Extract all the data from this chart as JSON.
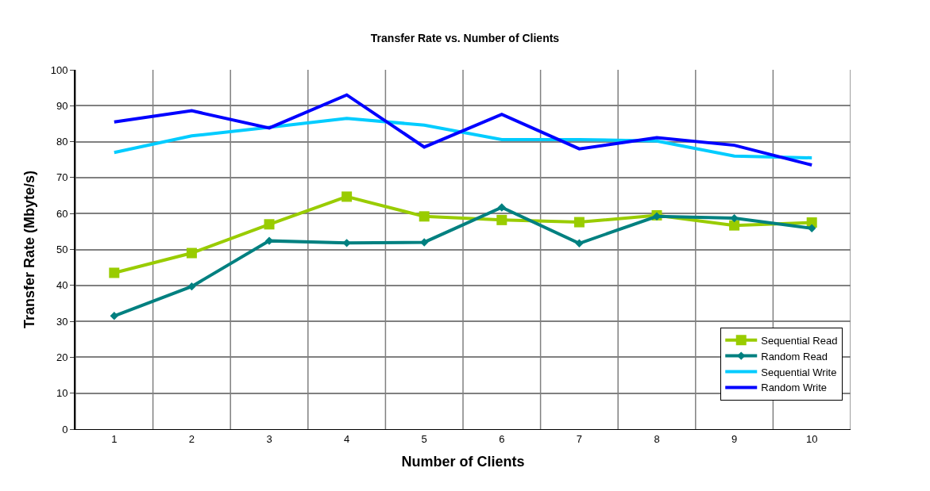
{
  "chart_data": {
    "type": "line",
    "title": "Transfer Rate vs. Number of Clients",
    "xlabel": "Number of Clients",
    "ylabel": "Transfer Rate (Mbyte/s)",
    "categories": [
      "1",
      "2",
      "3",
      "4",
      "5",
      "6",
      "7",
      "8",
      "9",
      "10"
    ],
    "series": [
      {
        "name": "Sequential Read",
        "color": "#99cc00",
        "marker": "square",
        "values": [
          43.5,
          49,
          57,
          64.7,
          59.2,
          58.2,
          57.6,
          59.5,
          56.7,
          57.5
        ]
      },
      {
        "name": "Random Read",
        "color": "#008080",
        "marker": "diamond",
        "values": [
          31.5,
          39.7,
          52.4,
          51.8,
          52,
          61.7,
          51.7,
          59.2,
          58.7,
          55.9
        ]
      },
      {
        "name": "Sequential Write",
        "color": "#00ccff",
        "marker": "none",
        "values": [
          77,
          81.6,
          84,
          86.5,
          84.6,
          80.6,
          80.6,
          80.2,
          76,
          75.5
        ]
      },
      {
        "name": "Random Write",
        "color": "#0000ff",
        "marker": "none",
        "values": [
          85.5,
          88.6,
          83.8,
          93,
          78.5,
          87.6,
          78,
          81.1,
          79,
          73.5
        ]
      }
    ],
    "ylim": [
      0,
      100
    ],
    "yticks": [
      0,
      10,
      20,
      30,
      40,
      50,
      60,
      70,
      80,
      90,
      100
    ],
    "grid": true,
    "legend": "bottom right",
    "line_style": "solid"
  }
}
